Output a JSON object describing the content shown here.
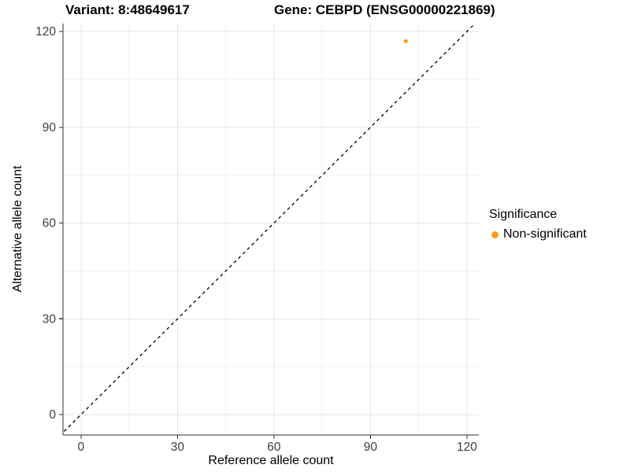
{
  "titles": {
    "variant": "Variant: 8:48649617",
    "gene": "Gene: CEBPD (ENSG00000221869)"
  },
  "chart_data": {
    "type": "scatter",
    "xlabel": "Reference allele count",
    "ylabel": "Alternative allele count",
    "xlim": [
      -5.6,
      123.7
    ],
    "ylim": [
      -6.4,
      122.5
    ],
    "xticks": [
      0,
      30,
      60,
      90,
      120
    ],
    "yticks": [
      0,
      30,
      60,
      90,
      120
    ],
    "xminor": [
      15,
      45,
      75,
      105
    ],
    "yminor": [
      15,
      45,
      75,
      105
    ],
    "grid": true,
    "identity_line": {
      "slope": 1,
      "intercept": 0,
      "linetype": "dashed",
      "color": "#000000"
    },
    "series": [
      {
        "name": "Non-significant",
        "color": "#FA9E1E",
        "point_radius": 2.6,
        "points": [
          {
            "x": 101,
            "y": 117
          }
        ]
      }
    ],
    "legend": {
      "title": "Significance",
      "position": "right",
      "entries": [
        {
          "label": "Non-significant",
          "color": "#FA9E1E"
        }
      ]
    },
    "colors": {
      "grid_major": "#e4e4e4",
      "grid_minor": "#f1f1f1",
      "axis_line": "#333333",
      "tick_mark": "#333333",
      "tick_label": "#404040"
    }
  }
}
